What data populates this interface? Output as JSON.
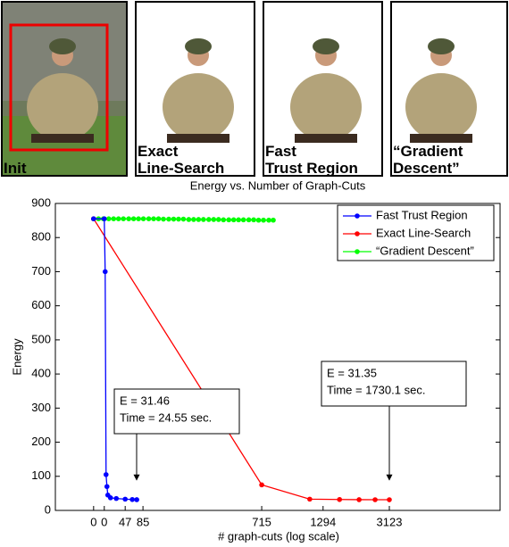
{
  "panels": [
    {
      "label": [
        "Init"
      ]
    },
    {
      "label": [
        "Exact",
        "Line-Search"
      ]
    },
    {
      "label": [
        "Fast",
        "Trust Region"
      ]
    },
    {
      "label": [
        "“Gradient",
        "Descent”"
      ]
    }
  ],
  "chart_data": {
    "type": "line",
    "title": "Energy vs. Number of Graph-Cuts",
    "x_label": "# graph-cuts (log scale)",
    "y_label": "Energy",
    "xlim": [
      0,
      100
    ],
    "ylim": [
      0,
      900
    ],
    "xticks": [
      {
        "value": 8.6,
        "label": "0"
      },
      {
        "value": 11.0,
        "label": "0"
      },
      {
        "value": 15.7,
        "label": "47"
      },
      {
        "value": 19.7,
        "label": "85"
      },
      {
        "value": 46.4,
        "label": "715"
      },
      {
        "value": 60.2,
        "label": "1294"
      },
      {
        "value": 75.1,
        "label": "3123"
      }
    ],
    "yticks": [
      0,
      100,
      200,
      300,
      400,
      500,
      600,
      700,
      800,
      900
    ],
    "legend": "upper right",
    "series": [
      {
        "name": "Fast Trust Region",
        "color": "#0000ff",
        "x": [
          8.6,
          11.0,
          11.2,
          11.4,
          11.6,
          11.8,
          12.4,
          13.7,
          15.7,
          17.3,
          18.3
        ],
        "values": [
          855,
          855,
          700,
          105,
          70,
          45,
          37,
          35,
          33,
          32,
          31.46
        ]
      },
      {
        "name": "Exact Line-Search",
        "color": "#ff0000",
        "x": [
          8.6,
          46.4,
          57.2,
          63.9,
          68.3,
          71.9,
          75.1
        ],
        "values": [
          855,
          75,
          33,
          32,
          31.5,
          31.4,
          31.35
        ]
      },
      {
        "name": "“Gradient Descent”",
        "color": "#00ff00",
        "x": [
          8.6,
          9.7,
          10.8,
          12.0,
          13.1,
          14.2,
          15.3,
          16.5,
          17.6,
          18.7,
          19.8,
          21.0,
          22.1,
          23.2,
          24.3,
          25.5,
          26.6,
          27.7,
          28.8,
          30.0,
          31.1,
          32.2,
          33.3,
          34.5,
          35.6,
          36.7,
          37.8,
          39.0,
          40.1,
          41.2,
          42.3,
          43.5,
          44.6,
          45.7,
          46.8,
          48.0,
          49.0
        ],
        "values": [
          855,
          855,
          855,
          855,
          855,
          855,
          855,
          855,
          855,
          855,
          855,
          855,
          855,
          855,
          854,
          854,
          854,
          854,
          854,
          853,
          853,
          853,
          853,
          853,
          853,
          853,
          852,
          852,
          852,
          852,
          852,
          852,
          852,
          851,
          851,
          851,
          851
        ]
      }
    ],
    "annotations": [
      {
        "lines": [
          "E = 31.46",
          "Time = 24.55 sec."
        ]
      },
      {
        "lines": [
          "E = 31.35",
          "Time = 1730.1 sec."
        ]
      }
    ]
  }
}
